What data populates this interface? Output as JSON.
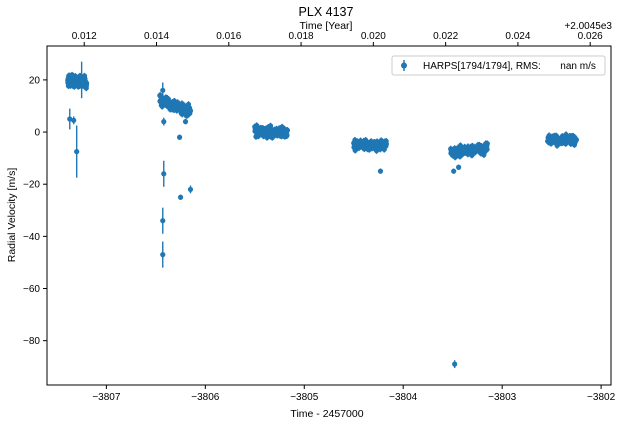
{
  "chart_data": {
    "type": "scatter",
    "title": "PLX 4137",
    "xlabel": "Time - 2457000",
    "ylabel": "Radial Velocity [m/s]",
    "top_xlabel": "Time [Year]",
    "top_offset_label": "+2.0045e3",
    "xlim": [
      -3807.6,
      -3801.9
    ],
    "ylim": [
      -97,
      33
    ],
    "x_ticks": [
      -3807,
      -3806,
      -3805,
      -3804,
      -3803,
      -3802
    ],
    "x_tick_labels": [
      "−3807",
      "−3806",
      "−3805",
      "−3804",
      "−3803",
      "−3802"
    ],
    "y_ticks": [
      20,
      0,
      -20,
      -40,
      -60,
      -80
    ],
    "y_tick_labels": [
      "20",
      "0",
      "−20",
      "−40",
      "−60",
      "−80"
    ],
    "top_ticks": [
      0.012,
      0.014,
      0.016,
      0.018,
      0.02,
      0.022,
      0.024,
      0.026
    ],
    "top_tick_labels": [
      "0.012",
      "0.014",
      "0.016",
      "0.018",
      "0.020",
      "0.022",
      "0.024",
      "0.026"
    ],
    "top_axis_map": {
      "x0": -3807.6,
      "year0": 0.01097,
      "days_per_unit": 365.25
    },
    "grid": false,
    "legend_position": "top-right",
    "color": "#1f77b4",
    "series": [
      {
        "name": "HARPS[1794/1794], RMS:       nan m/s",
        "clusters": [
          {
            "x_start": -3807.39,
            "x_end": -3807.2,
            "y_start": 20,
            "y_end": 19,
            "spread": 2.2,
            "count": 120,
            "err": 1.2
          },
          {
            "x_start": -3806.46,
            "x_end": -3806.15,
            "y_start": 12,
            "y_end": 8,
            "spread": 2.2,
            "count": 140,
            "err": 1.2
          },
          {
            "x_start": -3805.5,
            "x_end": -3805.17,
            "y_start": 0,
            "y_end": 0,
            "spread": 1.8,
            "count": 140,
            "err": 1.2
          },
          {
            "x_start": -3804.5,
            "x_end": -3804.17,
            "y_start": -5,
            "y_end": -5,
            "spread": 1.8,
            "count": 140,
            "err": 1.2
          },
          {
            "x_start": -3803.52,
            "x_end": -3803.15,
            "y_start": -8,
            "y_end": -6,
            "spread": 1.8,
            "count": 140,
            "err": 1.2
          },
          {
            "x_start": -3802.54,
            "x_end": -3802.25,
            "y_start": -3,
            "y_end": -3,
            "spread": 1.7,
            "count": 120,
            "err": 1.2
          }
        ],
        "points": [
          {
            "x": -3807.37,
            "y": 5,
            "err": 4
          },
          {
            "x": -3807.33,
            "y": 4.5,
            "err": 1.5
          },
          {
            "x": -3807.3,
            "y": -7.5,
            "err": 10
          },
          {
            "x": -3807.25,
            "y": 20,
            "err": 7
          },
          {
            "x": -3806.43,
            "y": 16,
            "err": 3
          },
          {
            "x": -3806.42,
            "y": 4,
            "err": 1.5
          },
          {
            "x": -3806.42,
            "y": -16,
            "err": 5
          },
          {
            "x": -3806.43,
            "y": -34,
            "err": 5
          },
          {
            "x": -3806.43,
            "y": -47,
            "err": 5
          },
          {
            "x": -3806.26,
            "y": -2,
            "err": 1
          },
          {
            "x": -3806.25,
            "y": -25,
            "err": 1
          },
          {
            "x": -3806.15,
            "y": -22,
            "err": 1.5
          },
          {
            "x": -3806.2,
            "y": 4,
            "err": 1
          },
          {
            "x": -3804.23,
            "y": -15,
            "err": 1
          },
          {
            "x": -3803.49,
            "y": -15,
            "err": 1
          },
          {
            "x": -3803.44,
            "y": -13.5,
            "err": 1
          },
          {
            "x": -3803.48,
            "y": -89,
            "err": 1.5
          }
        ]
      }
    ]
  }
}
